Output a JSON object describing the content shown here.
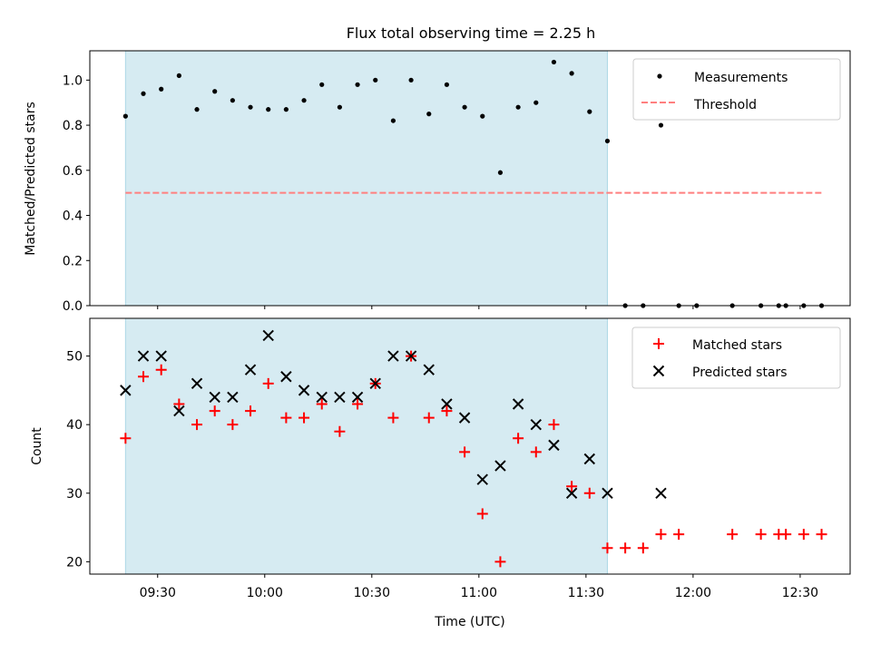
{
  "title": "Flux total observing time = 2.25 h",
  "colors": {
    "shade": "#add8e6",
    "threshold": "#ff7f7f",
    "measurements": "#000000",
    "matched": "#ff0000",
    "predicted": "#000000"
  },
  "chart_data": [
    {
      "type": "scatter",
      "ylabel": "Matched/Predicted stars",
      "xlim": [
        "09:11",
        "12:44"
      ],
      "ylim": [
        0,
        1.13
      ],
      "yticks": [
        0.0,
        0.2,
        0.4,
        0.6,
        0.8,
        1.0
      ],
      "ytick_labels": [
        "0.0",
        "0.2",
        "0.4",
        "0.6",
        "0.8",
        "1.0"
      ],
      "shaded_span": [
        "09:21",
        "11:36"
      ],
      "legend": {
        "placement": "top-right",
        "entries": [
          "Measurements",
          "Threshold"
        ]
      },
      "threshold": {
        "name": "Threshold",
        "value": 0.5,
        "x_range": [
          "09:21",
          "12:36"
        ]
      },
      "series": [
        {
          "name": "Measurements",
          "x": [
            "09:21",
            "09:26",
            "09:31",
            "09:36",
            "09:41",
            "09:46",
            "09:51",
            "09:56",
            "10:01",
            "10:06",
            "10:11",
            "10:16",
            "10:21",
            "10:26",
            "10:31",
            "10:36",
            "10:41",
            "10:46",
            "10:51",
            "10:56",
            "11:01",
            "11:06",
            "11:11",
            "11:16",
            "11:21",
            "11:26",
            "11:31",
            "11:36",
            "11:41",
            "11:46",
            "11:51",
            "11:56",
            "12:01",
            "12:11",
            "12:19",
            "12:24",
            "12:26",
            "12:31",
            "12:36"
          ],
          "y": [
            0.84,
            0.94,
            0.96,
            1.02,
            0.87,
            0.95,
            0.91,
            0.88,
            0.87,
            0.87,
            0.91,
            0.98,
            0.88,
            0.98,
            1.0,
            0.82,
            1.0,
            0.85,
            0.98,
            0.88,
            0.84,
            0.59,
            0.88,
            0.9,
            1.08,
            1.03,
            0.86,
            0.73,
            0.0,
            0.0,
            0.8,
            0.0,
            0.0,
            0.0,
            0.0,
            0.0,
            0.0,
            0.0,
            0.0
          ]
        }
      ]
    },
    {
      "type": "scatter",
      "ylabel": "Count",
      "xlabel": "Time (UTC)",
      "xlim": [
        "09:11",
        "12:44"
      ],
      "ylim": [
        18.2,
        55.5
      ],
      "yticks": [
        20,
        30,
        40,
        50
      ],
      "ytick_labels": [
        "20",
        "30",
        "40",
        "50"
      ],
      "xticks": [
        "09:30",
        "10:00",
        "10:30",
        "11:00",
        "11:30",
        "12:00",
        "12:30"
      ],
      "shaded_span": [
        "09:21",
        "11:36"
      ],
      "legend": {
        "placement": "top-right",
        "entries": [
          "Matched stars",
          "Predicted stars"
        ]
      },
      "series": [
        {
          "name": "Matched stars",
          "x": [
            "09:21",
            "09:26",
            "09:31",
            "09:36",
            "09:41",
            "09:46",
            "09:51",
            "09:56",
            "10:01",
            "10:06",
            "10:11",
            "10:16",
            "10:21",
            "10:26",
            "10:31",
            "10:36",
            "10:41",
            "10:46",
            "10:51",
            "10:56",
            "11:01",
            "11:06",
            "11:11",
            "11:16",
            "11:21",
            "11:26",
            "11:31",
            "11:36",
            "11:41",
            "11:46",
            "11:51",
            "11:56",
            "12:11",
            "12:19",
            "12:24",
            "12:26",
            "12:31",
            "12:36"
          ],
          "y": [
            38,
            47,
            48,
            43,
            40,
            42,
            40,
            42,
            46,
            41,
            41,
            43,
            39,
            43,
            46,
            41,
            50,
            41,
            42,
            36,
            27,
            20,
            38,
            36,
            40,
            31,
            30,
            22,
            22,
            22,
            24,
            24,
            24,
            24,
            24,
            24,
            24,
            24
          ]
        },
        {
          "name": "Predicted stars",
          "x": [
            "09:21",
            "09:26",
            "09:31",
            "09:36",
            "09:41",
            "09:46",
            "09:51",
            "09:56",
            "10:01",
            "10:06",
            "10:11",
            "10:16",
            "10:21",
            "10:26",
            "10:31",
            "10:36",
            "10:41",
            "10:46",
            "10:51",
            "10:56",
            "11:01",
            "11:06",
            "11:11",
            "11:16",
            "11:21",
            "11:26",
            "11:31",
            "11:36",
            "11:51"
          ],
          "y": [
            45,
            50,
            50,
            42,
            46,
            44,
            44,
            48,
            53,
            47,
            45,
            44,
            44,
            44,
            46,
            50,
            50,
            48,
            43,
            41,
            32,
            34,
            43,
            40,
            37,
            30,
            35,
            30,
            30
          ]
        }
      ]
    }
  ]
}
